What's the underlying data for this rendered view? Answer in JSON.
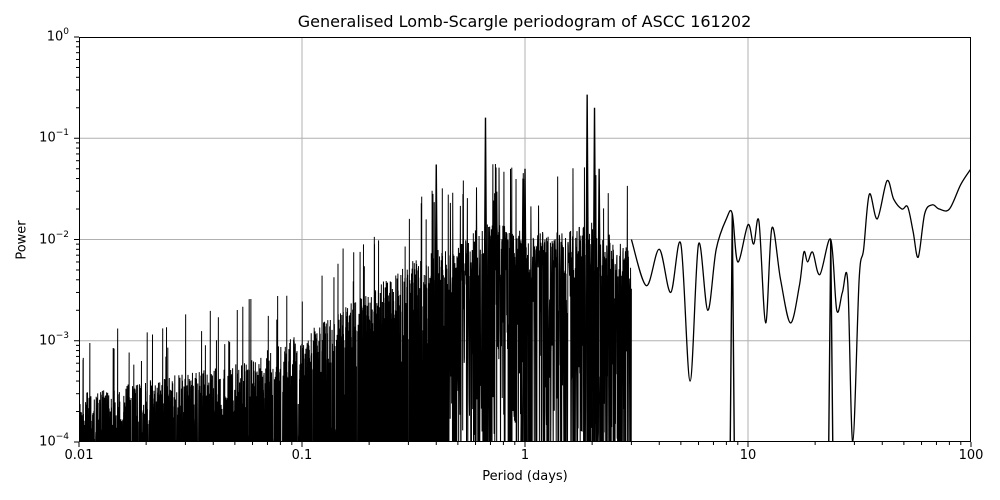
{
  "chart_data": {
    "type": "line",
    "title": "Generalised Lomb-Scargle periodogram of ASCC 161202",
    "xlabel": "Period (days)",
    "ylabel": "Power",
    "xscale": "log",
    "yscale": "log",
    "xlim": [
      0.01,
      100
    ],
    "ylim": [
      0.0001,
      1
    ],
    "grid": true,
    "legend": null,
    "line_color": "#000000",
    "grid_color": "#b0b0b0",
    "x_ticks": [
      {
        "value": 0.01,
        "label": "0.01"
      },
      {
        "value": 0.1,
        "label": "0.1"
      },
      {
        "value": 1,
        "label": "1"
      },
      {
        "value": 10,
        "label": "10"
      },
      {
        "value": 100,
        "label": "100"
      }
    ],
    "y_ticks": [
      {
        "value": 1,
        "base": "10",
        "exp": "0"
      },
      {
        "value": 0.1,
        "base": "10",
        "exp": "−1"
      },
      {
        "value": 0.01,
        "base": "10",
        "exp": "−2"
      },
      {
        "value": 0.001,
        "base": "10",
        "exp": "−3"
      },
      {
        "value": 0.0001,
        "base": "10",
        "exp": "−4"
      }
    ],
    "envelope_upper": {
      "period": [
        0.01,
        0.02,
        0.05,
        0.1,
        0.2,
        0.3,
        0.5,
        0.7,
        1.0,
        1.5,
        2.0,
        3.0
      ],
      "power": [
        0.0003,
        0.0004,
        0.0006,
        0.0012,
        0.003,
        0.006,
        0.01,
        0.015,
        0.012,
        0.012,
        0.015,
        0.008
      ]
    },
    "notable_peaks": [
      {
        "period": 1.9,
        "power": 0.27
      },
      {
        "period": 2.05,
        "power": 0.2
      },
      {
        "period": 0.665,
        "power": 0.16
      },
      {
        "period": 0.98,
        "power": 0.04
      },
      {
        "period": 0.4,
        "power": 0.055
      },
      {
        "period": 1.0,
        "power": 0.05
      },
      {
        "period": 2.15,
        "power": 0.05
      },
      {
        "period": 8.5,
        "power": 0.018
      },
      {
        "period": 23.5,
        "power": 0.01
      }
    ],
    "smooth_tail": {
      "period": [
        3.0,
        3.5,
        4.0,
        4.5,
        5.0,
        5.5,
        6.0,
        6.6,
        7.2,
        8.0,
        8.5,
        9.0,
        10.0,
        10.6,
        11.2,
        12.0,
        12.8,
        14.0,
        15.5,
        17.0,
        17.8,
        18.5,
        19.5,
        21.0,
        23.5,
        25.0,
        26.5,
        28.0,
        29.5,
        31.5,
        33.0,
        35.0,
        38.0,
        42.0,
        45.0,
        49.0,
        52.0,
        55.0,
        58.0,
        62.0,
        67.0,
        72.0,
        80.0,
        90.0,
        100.0
      ],
      "power": [
        0.01,
        0.0035,
        0.008,
        0.003,
        0.009,
        0.0004,
        0.009,
        0.002,
        0.008,
        0.016,
        0.018,
        0.006,
        0.014,
        0.009,
        0.015,
        0.0015,
        0.013,
        0.004,
        0.0015,
        0.0035,
        0.0075,
        0.006,
        0.0075,
        0.0045,
        0.01,
        0.002,
        0.003,
        0.0038,
        0.0001,
        0.004,
        0.008,
        0.028,
        0.016,
        0.038,
        0.025,
        0.02,
        0.021,
        0.012,
        0.0067,
        0.018,
        0.022,
        0.02,
        0.02,
        0.035,
        0.05
      ]
    }
  }
}
